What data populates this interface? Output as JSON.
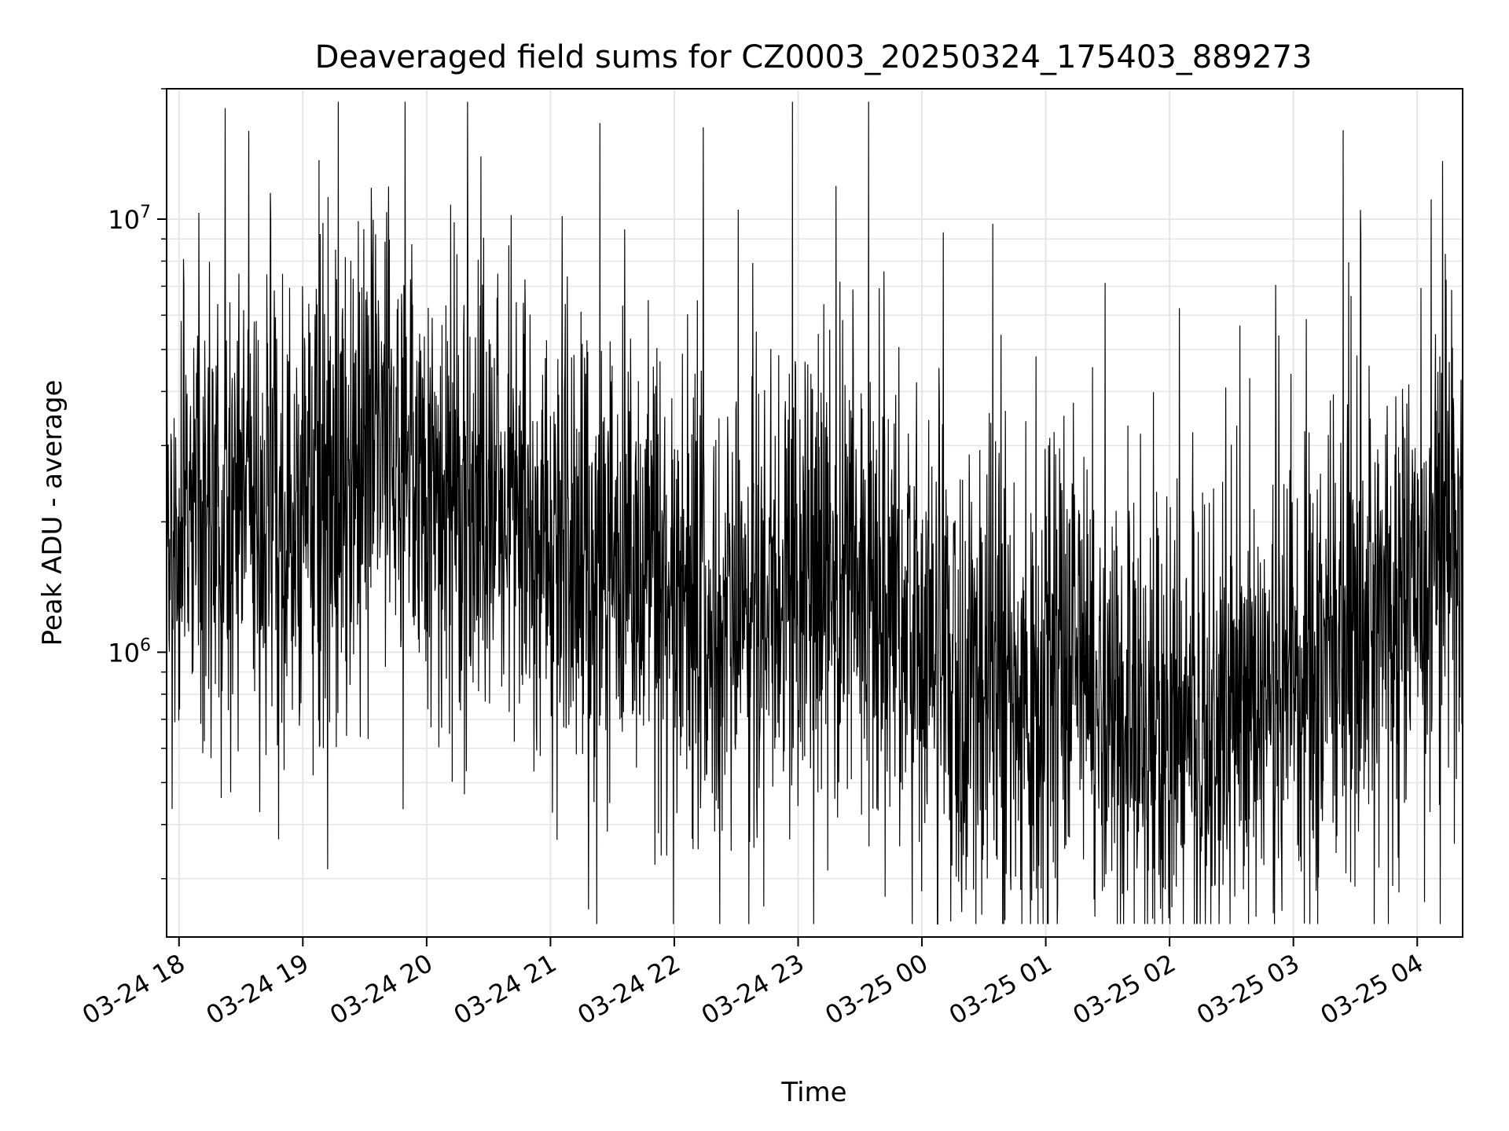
{
  "chart_data": {
    "type": "line",
    "title": "Deaveraged field sums for CZ0003_20250324_175403_889273",
    "xlabel": "Time",
    "ylabel": "Peak ADU - average",
    "y_scale": "log",
    "ylim": [
      220000,
      20000000
    ],
    "xlim": [
      "2025-03-24 17:54",
      "2025-03-25 04:22"
    ],
    "grid": true,
    "grid_color": "#e6e6e6",
    "line_color": "#000000",
    "x_ticks": [
      {
        "time": "2025-03-24 18:00",
        "label": "03-24 18"
      },
      {
        "time": "2025-03-24 19:00",
        "label": "03-24 19"
      },
      {
        "time": "2025-03-24 20:00",
        "label": "03-24 20"
      },
      {
        "time": "2025-03-24 21:00",
        "label": "03-24 21"
      },
      {
        "time": "2025-03-24 22:00",
        "label": "03-24 22"
      },
      {
        "time": "2025-03-24 23:00",
        "label": "03-24 23"
      },
      {
        "time": "2025-03-25 00:00",
        "label": "03-25 00"
      },
      {
        "time": "2025-03-25 01:00",
        "label": "03-25 01"
      },
      {
        "time": "2025-03-25 02:00",
        "label": "03-25 02"
      },
      {
        "time": "2025-03-25 03:00",
        "label": "03-25 03"
      },
      {
        "time": "2025-03-25 04:00",
        "label": "03-25 04"
      }
    ],
    "y_ticks_major": [
      {
        "value": 1000000,
        "base": "10",
        "exp": "6"
      },
      {
        "value": 10000000,
        "base": "10",
        "exp": "7"
      }
    ],
    "series": [
      {
        "x": [
          "2025-03-24 17:54",
          "2025-03-24 18:00",
          "2025-03-24 18:05",
          "2025-03-24 18:10",
          "2025-03-24 18:20",
          "2025-03-24 18:30",
          "2025-03-24 18:40",
          "2025-03-24 18:50",
          "2025-03-24 19:00",
          "2025-03-24 19:10",
          "2025-03-24 19:20",
          "2025-03-24 19:30",
          "2025-03-24 19:35",
          "2025-03-24 19:40",
          "2025-03-24 19:50",
          "2025-03-24 20:00",
          "2025-03-24 20:15",
          "2025-03-24 20:30",
          "2025-03-24 20:45",
          "2025-03-24 21:00",
          "2025-03-24 21:15",
          "2025-03-24 21:30",
          "2025-03-24 21:45",
          "2025-03-24 22:00",
          "2025-03-24 22:15",
          "2025-03-24 22:30",
          "2025-03-24 22:45",
          "2025-03-24 23:00",
          "2025-03-24 23:15",
          "2025-03-24 23:30",
          "2025-03-24 23:45",
          "2025-03-25 00:00",
          "2025-03-25 00:15",
          "2025-03-25 00:30",
          "2025-03-25 00:45",
          "2025-03-25 01:00",
          "2025-03-25 01:15",
          "2025-03-25 01:30",
          "2025-03-25 01:45",
          "2025-03-25 02:00",
          "2025-03-25 02:15",
          "2025-03-25 02:30",
          "2025-03-25 02:45",
          "2025-03-25 03:00",
          "2025-03-25 03:15",
          "2025-03-25 03:30",
          "2025-03-25 03:45",
          "2025-03-25 04:00",
          "2025-03-25 04:05",
          "2025-03-25 04:10",
          "2025-03-25 04:15",
          "2025-03-25 04:22"
        ],
        "y": [
          1300000,
          1800000,
          2300000,
          1700000,
          2000000,
          2400000,
          2100000,
          1800000,
          2000000,
          2200000,
          2300000,
          2800000,
          3800000,
          3600000,
          2600000,
          2200000,
          2000000,
          2600000,
          2000000,
          1800000,
          1600000,
          1450000,
          1500000,
          1400000,
          1400000,
          1300000,
          1350000,
          1350000,
          1300000,
          1400000,
          1250000,
          1050000,
          800000,
          780000,
          720000,
          920000,
          880000,
          700000,
          640000,
          620000,
          620000,
          720000,
          760000,
          830000,
          980000,
          1000000,
          1150000,
          1300000,
          1500000,
          2200000,
          1700000,
          1150000
        ]
      }
    ],
    "noise_seed": 20250324,
    "noise_amplitude_log10": 0.28,
    "spike_probability": 0.05
  }
}
